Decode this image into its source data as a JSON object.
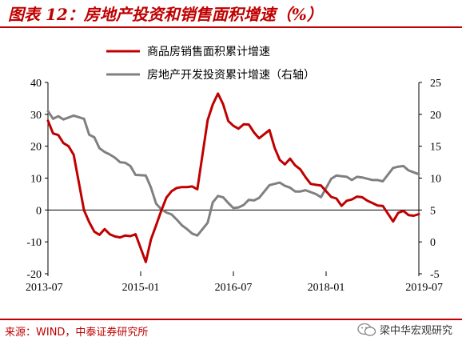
{
  "title": "图表 12：房地产投资和销售面积增速（%）",
  "source": "来源：WIND，中泰证券研究所",
  "watermark": "梁中华宏观研究",
  "colors": {
    "brand": "#c00000",
    "sales": "#c00000",
    "investment": "#808080"
  },
  "chart_data": {
    "type": "line",
    "title": "",
    "x_ticks": [
      "2013-07",
      "2015-01",
      "2016-07",
      "2018-01",
      "2019-07"
    ],
    "y_left": {
      "lim": [
        -20,
        40
      ],
      "ticks": [
        -20,
        -10,
        0,
        10,
        20,
        30,
        40
      ]
    },
    "y_right": {
      "lim": [
        -5,
        25
      ],
      "ticks": [
        -5,
        0,
        5,
        10,
        15,
        20,
        25
      ]
    },
    "legend_position": "top",
    "series": [
      {
        "name": "商品房销售面积累计增速",
        "axis": "left",
        "color": "#c00000",
        "x": [
          "2013-07",
          "2013-08",
          "2013-09",
          "2013-10",
          "2013-11",
          "2013-12",
          "2014-02",
          "2014-03",
          "2014-04",
          "2014-05",
          "2014-06",
          "2014-07",
          "2014-08",
          "2014-09",
          "2014-10",
          "2014-11",
          "2014-12",
          "2015-02",
          "2015-03",
          "2015-04",
          "2015-05",
          "2015-06",
          "2015-07",
          "2015-08",
          "2015-09",
          "2015-10",
          "2015-11",
          "2015-12",
          "2016-02",
          "2016-03",
          "2016-04",
          "2016-05",
          "2016-06",
          "2016-07",
          "2016-08",
          "2016-09",
          "2016-10",
          "2016-11",
          "2016-12",
          "2017-02",
          "2017-03",
          "2017-04",
          "2017-05",
          "2017-06",
          "2017-07",
          "2017-08",
          "2017-09",
          "2017-10",
          "2017-11",
          "2017-12",
          "2018-02",
          "2018-03",
          "2018-04",
          "2018-05",
          "2018-06",
          "2018-07",
          "2018-08",
          "2018-09",
          "2018-10",
          "2018-11",
          "2018-12",
          "2019-02",
          "2019-03",
          "2019-04",
          "2019-05",
          "2019-06",
          "2019-07"
        ],
        "values": [
          28.0,
          24.0,
          23.5,
          21.0,
          20.0,
          17.3,
          -0.1,
          -3.8,
          -6.8,
          -7.8,
          -6.0,
          -7.6,
          -8.3,
          -8.6,
          -8.0,
          -8.2,
          -7.6,
          -16.3,
          -9.2,
          -4.8,
          -0.2,
          3.9,
          5.9,
          6.9,
          7.2,
          7.2,
          7.4,
          6.5,
          28.2,
          33.1,
          36.5,
          33.2,
          27.9,
          26.4,
          25.5,
          26.9,
          26.8,
          24.3,
          22.5,
          25.1,
          19.5,
          15.7,
          14.3,
          16.1,
          14.0,
          12.7,
          10.3,
          8.2,
          7.9,
          7.7,
          4.1,
          3.6,
          1.3,
          2.9,
          3.3,
          4.2,
          4.0,
          2.9,
          2.2,
          1.4,
          1.3,
          -3.6,
          -0.9,
          -0.3,
          -1.6,
          -1.8,
          -1.3
        ]
      },
      {
        "name": "房地产开发投资累计增速（右轴）",
        "axis": "right",
        "color": "#808080",
        "x": [
          "2013-07",
          "2013-08",
          "2013-09",
          "2013-10",
          "2013-11",
          "2013-12",
          "2014-02",
          "2014-03",
          "2014-04",
          "2014-05",
          "2014-06",
          "2014-07",
          "2014-08",
          "2014-09",
          "2014-10",
          "2014-11",
          "2014-12",
          "2015-02",
          "2015-03",
          "2015-04",
          "2015-05",
          "2015-06",
          "2015-07",
          "2015-08",
          "2015-09",
          "2015-10",
          "2015-11",
          "2015-12",
          "2016-02",
          "2016-03",
          "2016-04",
          "2016-05",
          "2016-06",
          "2016-07",
          "2016-08",
          "2016-09",
          "2016-10",
          "2016-11",
          "2016-12",
          "2017-02",
          "2017-03",
          "2017-04",
          "2017-05",
          "2017-06",
          "2017-07",
          "2017-08",
          "2017-09",
          "2017-10",
          "2017-11",
          "2017-12",
          "2018-02",
          "2018-03",
          "2018-04",
          "2018-05",
          "2018-06",
          "2018-07",
          "2018-08",
          "2018-09",
          "2018-10",
          "2018-11",
          "2018-12",
          "2019-02",
          "2019-03",
          "2019-04",
          "2019-05",
          "2019-06",
          "2019-07"
        ],
        "values": [
          20.5,
          19.3,
          19.7,
          19.2,
          19.5,
          19.8,
          19.3,
          16.8,
          16.4,
          14.7,
          14.1,
          13.7,
          13.2,
          12.5,
          12.4,
          11.9,
          10.5,
          10.4,
          8.5,
          6.0,
          5.1,
          4.6,
          4.3,
          3.5,
          2.6,
          2.0,
          1.3,
          1.0,
          3.0,
          6.2,
          7.2,
          7.0,
          6.1,
          5.3,
          5.4,
          5.8,
          6.6,
          6.5,
          6.9,
          8.9,
          9.1,
          9.3,
          8.8,
          8.5,
          7.9,
          7.9,
          8.1,
          7.8,
          7.5,
          7.0,
          9.9,
          10.4,
          10.3,
          10.2,
          9.7,
          10.2,
          10.1,
          9.9,
          9.7,
          9.7,
          9.5,
          11.6,
          11.8,
          11.9,
          11.2,
          10.9,
          10.6
        ]
      }
    ]
  }
}
